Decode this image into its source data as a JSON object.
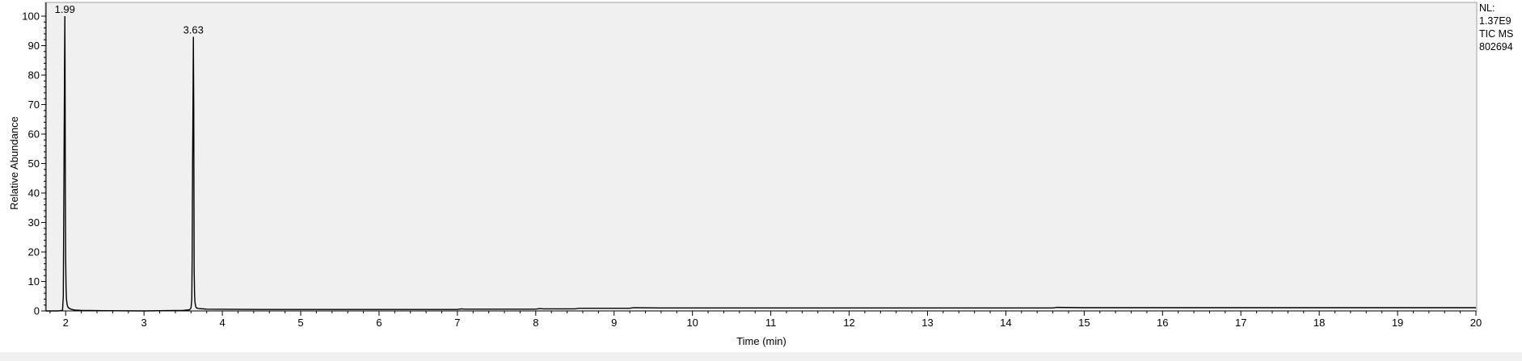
{
  "chart_data": {
    "type": "line",
    "title": "",
    "xlabel": "Time (min)",
    "ylabel": "Relative Abundance",
    "xlim": [
      1.75,
      20
    ],
    "ylim": [
      0,
      100
    ],
    "x_ticks": [
      2,
      3,
      4,
      5,
      6,
      7,
      8,
      9,
      10,
      11,
      12,
      13,
      14,
      15,
      16,
      17,
      18,
      19,
      20
    ],
    "y_ticks": [
      0,
      10,
      20,
      30,
      40,
      50,
      60,
      70,
      80,
      90,
      100
    ],
    "x_minor_step": 0.2,
    "grid": false,
    "info_lines": [
      "NL:",
      "1.37E9",
      "TIC  MS",
      "802694"
    ],
    "peak_labels": [
      {
        "x": 1.99,
        "y": 100,
        "text": "1.99"
      },
      {
        "x": 3.63,
        "y": 93,
        "text": "3.63"
      }
    ],
    "series": [
      {
        "x": [
          1.75,
          1.9,
          1.96,
          1.97,
          1.975,
          1.98,
          1.985,
          1.99,
          1.993,
          1.996,
          2.0,
          2.005,
          2.01,
          2.02,
          2.03,
          2.05,
          2.08,
          2.12,
          2.2,
          2.4,
          3.0,
          3.5,
          3.58,
          3.6,
          3.61,
          3.615,
          3.62,
          3.625,
          3.63,
          3.635,
          3.64,
          3.645,
          3.65,
          3.66,
          3.67,
          3.7,
          3.8,
          4.5,
          5.5,
          6.5,
          7.0,
          7.05,
          7.1,
          8.0,
          8.05,
          8.1,
          8.5,
          8.55,
          9.0,
          9.2,
          9.25,
          9.6,
          9.7,
          10.5,
          12.0,
          14.0,
          14.6,
          14.65,
          15.0,
          17.0,
          20.0
        ],
        "y": [
          0,
          0,
          0.2,
          5,
          30,
          54,
          80,
          100,
          77,
          40,
          18,
          8,
          4,
          2,
          1.2,
          0.8,
          0.5,
          0.3,
          0.2,
          0.1,
          0,
          0.2,
          0.4,
          1,
          4,
          20,
          50,
          69,
          93,
          68,
          14,
          6,
          3,
          1.5,
          1,
          0.8,
          0.6,
          0.5,
          0.5,
          0.5,
          0.5,
          0.7,
          0.6,
          0.6,
          0.8,
          0.7,
          0.7,
          0.9,
          0.9,
          0.9,
          1.1,
          1.0,
          1.0,
          1.0,
          1.0,
          1.0,
          1.0,
          1.2,
          1.1,
          1.1,
          1.1
        ]
      }
    ]
  }
}
